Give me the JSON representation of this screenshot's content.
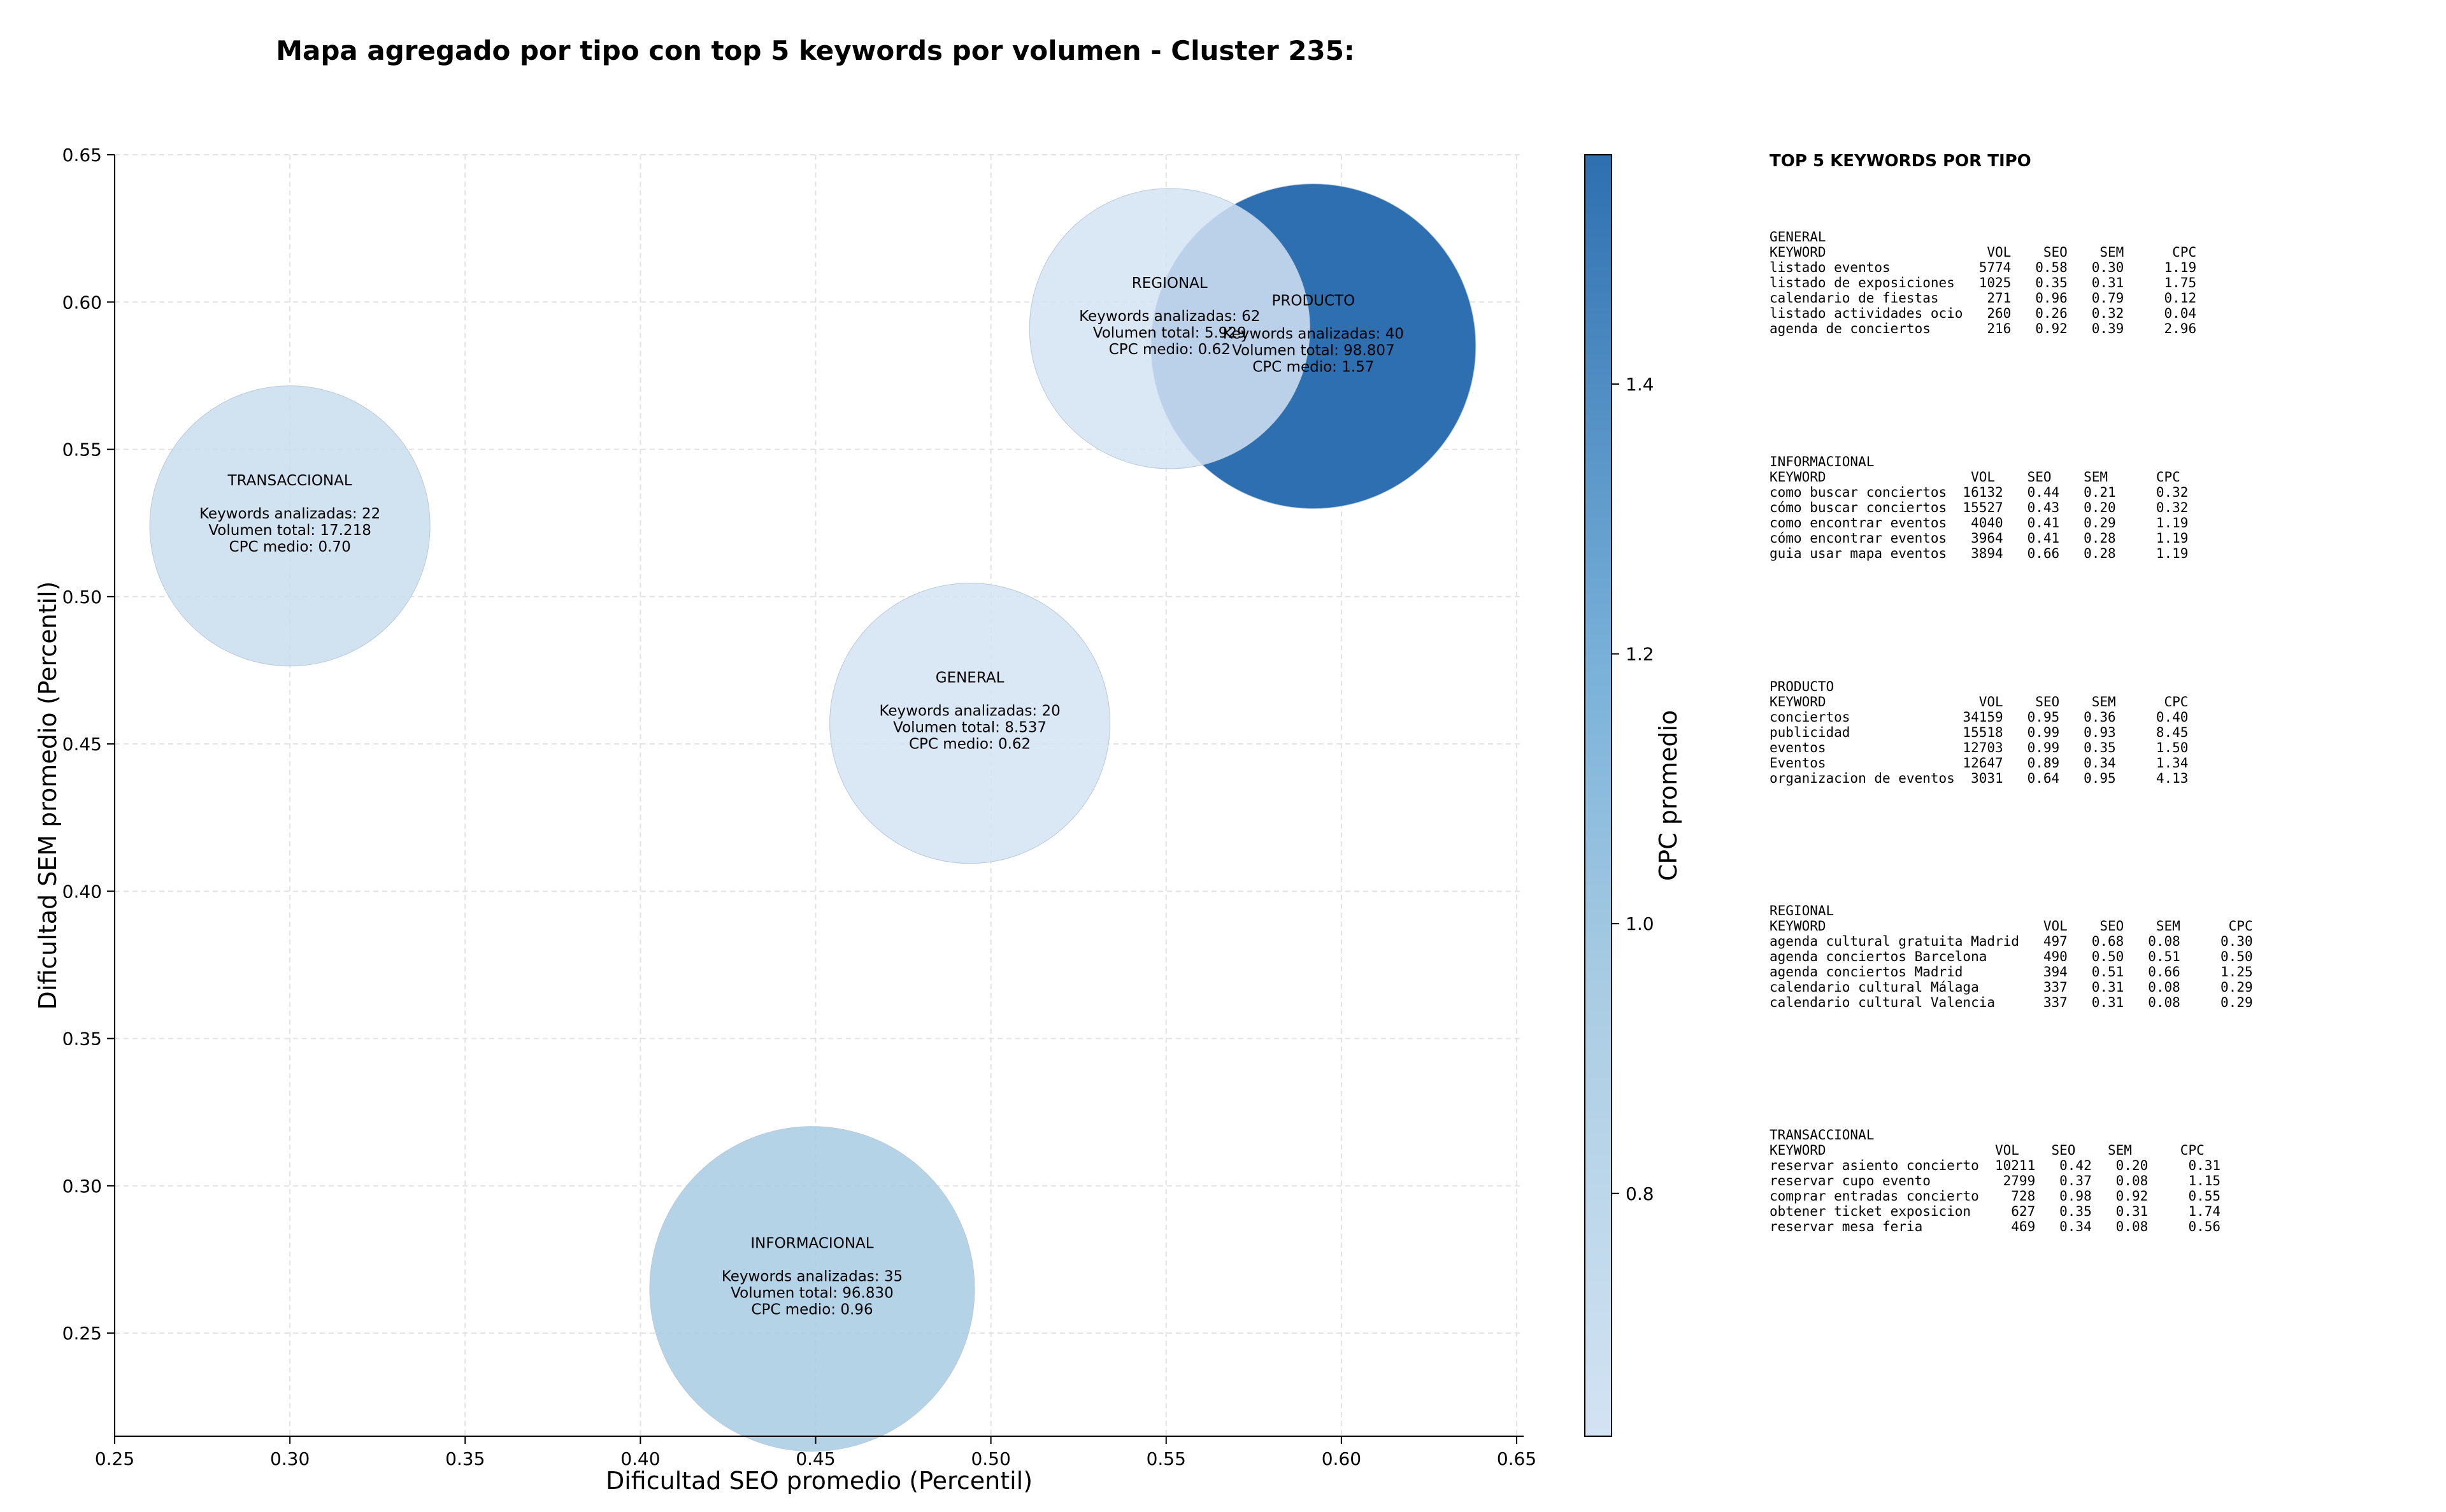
{
  "title": "Mapa agregado por tipo con top 5 keywords por volumen - Cluster 235:",
  "chart_data": {
    "type": "scatter",
    "title": "Mapa agregado por tipo con top 5 keywords por volumen - Cluster 235:",
    "xlabel": "Dificultad SEO promedio (Percentil)",
    "ylabel": "Dificultad SEM promedio (Percentil)",
    "xlim": [
      0.25,
      0.652
    ],
    "ylim": [
      0.215,
      0.65
    ],
    "xticks": [
      "0.25",
      "0.30",
      "0.35",
      "0.40",
      "0.45",
      "0.50",
      "0.55",
      "0.60",
      "0.65"
    ],
    "yticks": [
      "0.25",
      "0.30",
      "0.35",
      "0.40",
      "0.45",
      "0.50",
      "0.55",
      "0.60",
      "0.65"
    ],
    "grid": true,
    "colorbar": {
      "label": "CPC promedio",
      "range": [
        0.62,
        1.57
      ],
      "ticks": [
        "0.8",
        "1.0",
        "1.2",
        "1.4"
      ],
      "color_low": "#d0e1f2",
      "color_high": "#2d6fb0"
    },
    "bubbles": [
      {
        "name": "TRANSACCIONAL",
        "x": 0.3,
        "y": 0.524,
        "cpc": 0.7,
        "volume": 17218,
        "lines": [
          "TRANSACCIONAL",
          "",
          "Keywords analizadas: 22",
          "Volumen total: 17.218",
          "CPC medio: 0.70"
        ]
      },
      {
        "name": "GENERAL",
        "x": 0.494,
        "y": 0.457,
        "cpc": 0.62,
        "volume": 8537,
        "lines": [
          "GENERAL",
          "",
          "Keywords analizadas: 20",
          "Volumen total: 8.537",
          "CPC medio: 0.62"
        ]
      },
      {
        "name": "INFORMACIONAL",
        "x": 0.449,
        "y": 0.265,
        "cpc": 0.96,
        "volume": 96830,
        "lines": [
          "INFORMACIONAL",
          "",
          "Keywords analizadas: 35",
          "Volumen total: 96.830",
          "CPC medio: 0.96"
        ]
      },
      {
        "name": "PRODUCTO",
        "x": 0.592,
        "y": 0.585,
        "cpc": 1.57,
        "volume": 98807,
        "lines": [
          "PRODUCTO",
          "",
          "Keywords analizadas: 40",
          "Volumen total: 98.807",
          "CPC medio: 1.57"
        ]
      },
      {
        "name": "REGIONAL",
        "x": 0.551,
        "y": 0.591,
        "cpc": 0.62,
        "volume": 5929,
        "lines": [
          "REGIONAL",
          "",
          "Keywords analizadas: 62",
          "Volumen total: 5.929",
          "CPC medio: 0.62"
        ]
      }
    ]
  },
  "panel": {
    "title": "TOP 5 KEYWORDS POR TIPO",
    "groups": [
      {
        "id": "general",
        "lines": [
          "GENERAL",
          "KEYWORD                    VOL    SEO    SEM      CPC",
          "listado eventos           5774   0.58   0.30     1.19",
          "listado de exposiciones   1025   0.35   0.31     1.75",
          "calendario de fiestas      271   0.96   0.79     0.12",
          "listado actividades ocio   260   0.26   0.32     0.04",
          "agenda de conciertos       216   0.92   0.39     2.96"
        ]
      },
      {
        "id": "informacional",
        "lines": [
          "INFORMACIONAL",
          "KEYWORD                  VOL    SEO    SEM      CPC",
          "como buscar conciertos  16132   0.44   0.21     0.32",
          "cómo buscar conciertos  15527   0.43   0.20     0.32",
          "como encontrar eventos   4040   0.41   0.29     1.19",
          "cómo encontrar eventos   3964   0.41   0.28     1.19",
          "guia usar mapa eventos   3894   0.66   0.28     1.19"
        ]
      },
      {
        "id": "producto",
        "lines": [
          "PRODUCTO",
          "KEYWORD                   VOL    SEO    SEM      CPC",
          "conciertos              34159   0.95   0.36     0.40",
          "publicidad              15518   0.99   0.93     8.45",
          "eventos                 12703   0.99   0.35     1.50",
          "Eventos                 12647   0.89   0.34     1.34",
          "organizacion de eventos  3031   0.64   0.95     4.13"
        ]
      },
      {
        "id": "regional",
        "lines": [
          "REGIONAL",
          "KEYWORD                           VOL    SEO    SEM      CPC",
          "agenda cultural gratuita Madrid   497   0.68   0.08     0.30",
          "agenda conciertos Barcelona       490   0.50   0.51     0.50",
          "agenda conciertos Madrid          394   0.51   0.66     1.25",
          "calendario cultural Málaga        337   0.31   0.08     0.29",
          "calendario cultural Valencia      337   0.31   0.08     0.29"
        ]
      },
      {
        "id": "transaccional",
        "lines": [
          "TRANSACCIONAL",
          "KEYWORD                     VOL    SEO    SEM      CPC",
          "reservar asiento concierto  10211   0.42   0.20     0.31",
          "reservar cupo evento         2799   0.37   0.08     1.15",
          "comprar entradas concierto    728   0.98   0.92     0.55",
          "obtener ticket exposicion     627   0.35   0.31     1.74",
          "reservar mesa feria           469   0.34   0.08     0.56"
        ]
      }
    ]
  }
}
